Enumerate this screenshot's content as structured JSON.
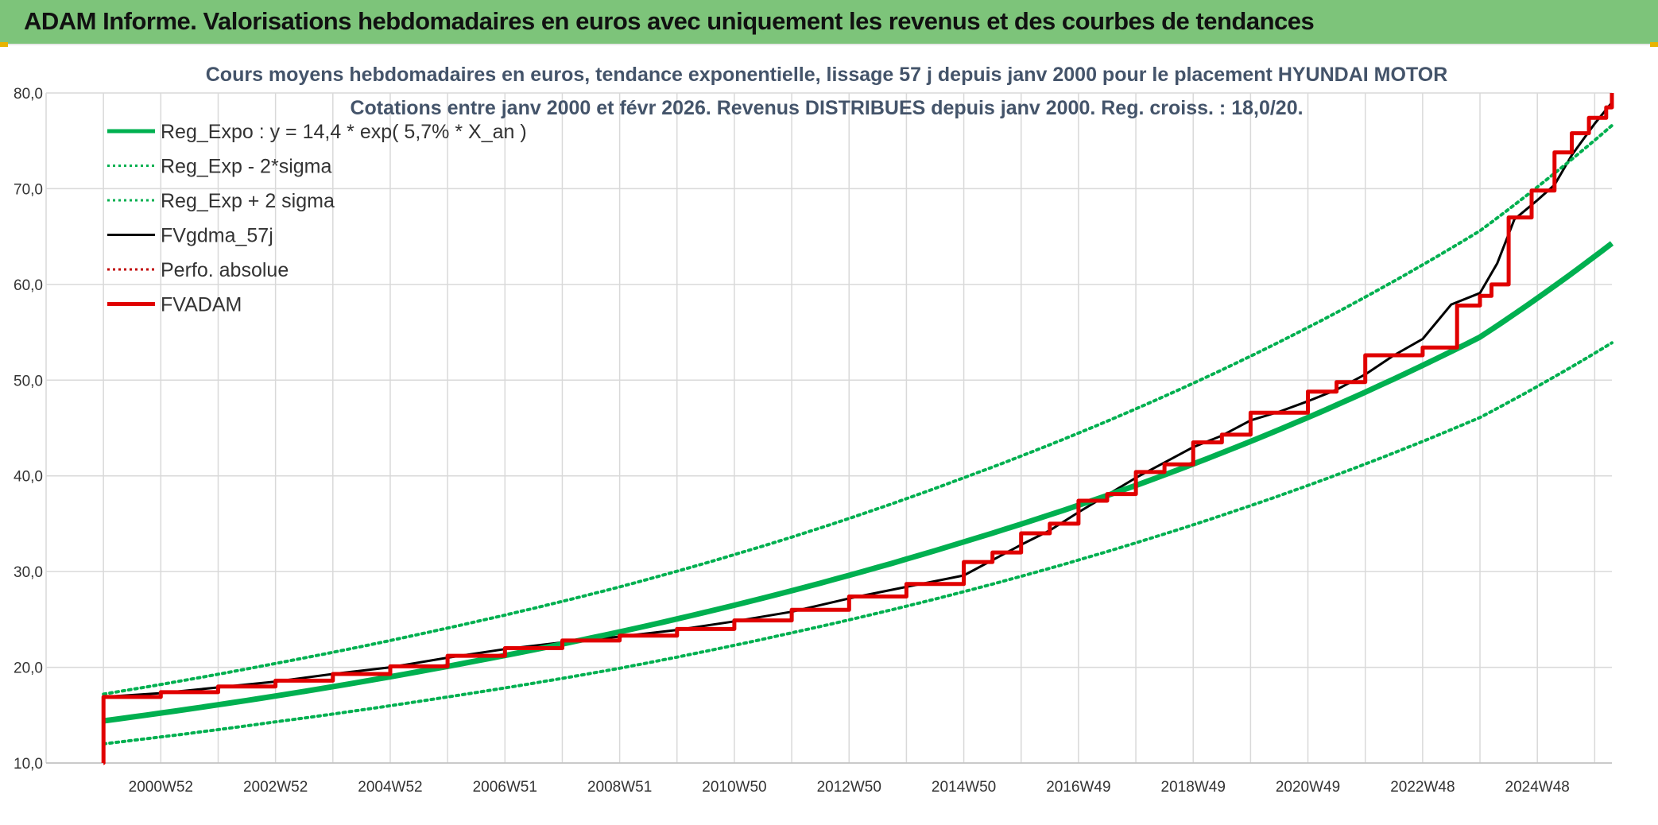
{
  "header": {
    "title": "ADAM Informe. Valorisations hebdomadaires en euros avec uniquement les revenus et des courbes de tendances"
  },
  "colors": {
    "header_bg": "#7dc47a",
    "trend": "#00b050",
    "fvgdma": "#000000",
    "adam": "#e00000",
    "perfo": "#c00000",
    "grid": "#d9d9d9"
  },
  "chart_data": {
    "type": "line",
    "title": "Cours moyens hebdomadaires en euros, tendance exponentielle, lissage 57 j depuis janv 2000 pour le placement HYUNDAI MOTOR",
    "subtitle": "Cotations entre janv 2000 et févr 2026. Revenus DISTRIBUES depuis janv 2000. Reg. croiss. : 18,0/20.",
    "xlabel": "",
    "ylabel": "",
    "ylim": [
      10,
      80
    ],
    "yticks": [
      "10,0",
      "20,0",
      "30,0",
      "40,0",
      "50,0",
      "60,0",
      "70,0",
      "80,0"
    ],
    "xlim": [
      1999.0,
      2026.3
    ],
    "xticks": [
      {
        "label": "2000W52",
        "x": 2001.0
      },
      {
        "label": "2002W52",
        "x": 2003.0
      },
      {
        "label": "2004W52",
        "x": 2005.0
      },
      {
        "label": "2006W51",
        "x": 2007.0
      },
      {
        "label": "2008W51",
        "x": 2009.0
      },
      {
        "label": "2010W50",
        "x": 2011.0
      },
      {
        "label": "2012W50",
        "x": 2013.0
      },
      {
        "label": "2014W50",
        "x": 2015.0
      },
      {
        "label": "2016W49",
        "x": 2017.0
      },
      {
        "label": "2018W49",
        "x": 2019.0
      },
      {
        "label": "2020W49",
        "x": 2021.0
      },
      {
        "label": "2022W48",
        "x": 2023.0
      },
      {
        "label": "2024W48",
        "x": 2025.0
      }
    ],
    "grid": true,
    "legend_position": "top-left",
    "series": [
      {
        "name": "Reg_Expo : y = 14,4 * exp( 5,7% *  X_an )",
        "style": "solid-thick",
        "color": "#00b050",
        "x": [
          2000.0,
          2003.0,
          2006.0,
          2009.0,
          2012.0,
          2015.0,
          2018.0,
          2021.0,
          2024.0,
          2026.3
        ],
        "y": [
          14.4,
          17.0,
          20.1,
          23.7,
          28.0,
          33.1,
          39.0,
          46.1,
          54.5,
          64.3
        ]
      },
      {
        "name": "Reg_Exp - 2*sigma",
        "style": "dotted",
        "color": "#00b050",
        "x": [
          2000.0,
          2003.0,
          2006.0,
          2009.0,
          2012.0,
          2015.0,
          2018.0,
          2021.0,
          2024.0,
          2026.3
        ],
        "y": [
          12.0,
          14.3,
          16.9,
          19.9,
          23.6,
          27.9,
          33.0,
          39.0,
          46.1,
          53.9
        ]
      },
      {
        "name": "Reg_Exp + 2 sigma",
        "style": "dotted",
        "color": "#00b050",
        "x": [
          2000.0,
          2003.0,
          2006.0,
          2009.0,
          2012.0,
          2015.0,
          2018.0,
          2021.0,
          2024.0,
          2026.3
        ],
        "y": [
          17.2,
          20.4,
          24.1,
          28.4,
          33.6,
          39.8,
          47.0,
          55.5,
          65.6,
          76.6
        ]
      },
      {
        "name": "FVgdma_57j",
        "style": "solid",
        "color": "#000000",
        "x": [
          2000.0,
          2001.0,
          2002.0,
          2003.0,
          2004.0,
          2005.0,
          2006.0,
          2007.0,
          2008.0,
          2009.0,
          2010.0,
          2011.0,
          2012.0,
          2013.0,
          2014.0,
          2015.0,
          2015.5,
          2016.0,
          2016.5,
          2017.0,
          2017.5,
          2018.0,
          2018.5,
          2019.0,
          2019.5,
          2020.0,
          2020.5,
          2021.0,
          2021.5,
          2022.0,
          2022.5,
          2023.0,
          2023.5,
          2024.0,
          2024.3,
          2024.6,
          2025.0,
          2025.3,
          2025.6,
          2026.0,
          2026.3
        ],
        "y": [
          16.9,
          17.3,
          17.9,
          18.5,
          19.3,
          20.0,
          21.0,
          21.9,
          22.6,
          23.2,
          23.9,
          24.8,
          25.8,
          27.2,
          28.4,
          29.6,
          31.2,
          32.8,
          34.3,
          36.2,
          38.0,
          39.8,
          41.4,
          43.0,
          44.2,
          45.8,
          46.7,
          47.8,
          49.0,
          50.6,
          52.6,
          54.3,
          57.9,
          59.1,
          62.2,
          66.8,
          68.8,
          70.4,
          73.5,
          76.8,
          79.0
        ]
      },
      {
        "name": "Perfo. absolue",
        "style": "dotted",
        "color": "#c00000",
        "x": [],
        "y": []
      },
      {
        "name": "FVADAM",
        "style": "step-thick",
        "color": "#e00000",
        "x": [
          2000.0,
          2000.0,
          2001.0,
          2002.0,
          2003.0,
          2004.0,
          2005.0,
          2006.0,
          2007.0,
          2008.0,
          2009.0,
          2010.0,
          2011.0,
          2012.0,
          2013.0,
          2014.0,
          2015.0,
          2015.5,
          2016.0,
          2016.5,
          2017.0,
          2017.5,
          2018.0,
          2018.5,
          2019.0,
          2019.5,
          2020.0,
          2021.0,
          2021.5,
          2022.0,
          2023.0,
          2023.6,
          2024.0,
          2024.2,
          2024.5,
          2024.9,
          2025.3,
          2025.6,
          2025.9,
          2026.2,
          2026.3
        ],
        "y": [
          10.0,
          16.9,
          17.4,
          18.0,
          18.6,
          19.3,
          20.1,
          21.2,
          22.0,
          22.8,
          23.3,
          24.0,
          24.9,
          26.0,
          27.4,
          28.7,
          31.0,
          32.0,
          34.0,
          35.0,
          37.4,
          38.1,
          40.4,
          41.2,
          43.5,
          44.3,
          46.6,
          48.8,
          49.8,
          52.6,
          53.4,
          57.8,
          58.8,
          60.0,
          67.0,
          69.8,
          73.8,
          75.8,
          77.4,
          78.5,
          80.0
        ]
      }
    ]
  }
}
